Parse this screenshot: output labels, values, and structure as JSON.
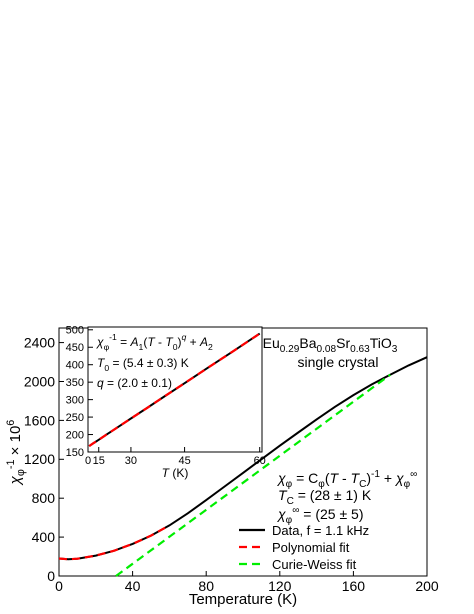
{
  "chart_data": [
    {
      "type": "line",
      "xlabel": "Temperature (K)",
      "ylabel": {
        "segments": [
          {
            "text": "χ",
            "italic": true
          },
          {
            "text": "φ",
            "sub": true
          },
          {
            "text": "-1",
            "sup": true
          },
          {
            "text": " × 10"
          },
          {
            "text": "6",
            "sup": true
          }
        ]
      },
      "xlim": [
        0,
        200
      ],
      "xticks": [
        0,
        40,
        80,
        120,
        160,
        200
      ],
      "ylim": [
        0,
        2550
      ],
      "yticks": [
        0,
        400,
        800,
        1200,
        1600,
        2000,
        2400
      ],
      "legend": "lower right",
      "series": [
        {
          "name": "Data, f = 1.1 kHz",
          "color": "#000000",
          "dash": "solid",
          "x": [
            0,
            5,
            10,
            20,
            30,
            40,
            50,
            60,
            70,
            80,
            90,
            100,
            110,
            120,
            130,
            140,
            150,
            160,
            170,
            180,
            190,
            200
          ],
          "values": [
            180,
            172,
            178,
            210,
            260,
            330,
            415,
            520,
            645,
            780,
            920,
            1060,
            1200,
            1340,
            1475,
            1610,
            1740,
            1860,
            1970,
            2070,
            2165,
            2250
          ]
        },
        {
          "name": "Polynomial fit",
          "color": "#ff0000",
          "dash": "dashed",
          "x": [
            0,
            5,
            10,
            20,
            30,
            40,
            50,
            60
          ],
          "values": [
            180,
            172,
            178,
            210,
            260,
            330,
            415,
            520
          ]
        },
        {
          "name": "Curie-Weiss fit",
          "color": "#00ee00",
          "dash": "dashed",
          "x": [
            31,
            180
          ],
          "values": [
            0,
            2070
          ]
        }
      ],
      "annotations": [
        {
          "segments": [
            {
              "text": "Eu"
            },
            {
              "text": "0.29",
              "sub": true
            },
            {
              "text": "Ba"
            },
            {
              "text": "0.08",
              "sub": true
            },
            {
              "text": "Sr"
            },
            {
              "text": "0.63",
              "sub": true
            },
            {
              "text": "TiO"
            },
            {
              "text": "3",
              "sub": true
            }
          ]
        },
        {
          "segments": [
            {
              "text": "single crystal"
            }
          ]
        },
        {
          "segments": [
            {
              "text": "χ",
              "italic": true
            },
            {
              "text": "φ",
              "sub": true
            },
            {
              "text": " = C"
            },
            {
              "text": "φ",
              "sub": true
            },
            {
              "text": "("
            },
            {
              "text": "T",
              "italic": true
            },
            {
              "text": " - "
            },
            {
              "text": "T",
              "italic": true
            },
            {
              "text": "C",
              "sub": true
            },
            {
              "text": ")"
            },
            {
              "text": "-1",
              "sup": true
            },
            {
              "text": " + "
            },
            {
              "text": "χ",
              "italic": true
            },
            {
              "text": "φ",
              "sub": true
            },
            {
              "text": "∞",
              "sup": true
            }
          ]
        },
        {
          "segments": [
            {
              "text": "T",
              "italic": true
            },
            {
              "text": "C",
              "sub": true
            },
            {
              "text": " = (28 ± 1) K"
            }
          ]
        },
        {
          "segments": [
            {
              "text": "χ",
              "italic": true
            },
            {
              "text": "φ",
              "sub": true
            },
            {
              "text": "∞",
              "sup": true
            },
            {
              "text": " = (25 ± 5)"
            }
          ]
        }
      ]
    },
    {
      "type": "line",
      "xlabel": {
        "segments": [
          {
            "text": "T",
            "italic": true
          },
          {
            "text": " (K)"
          }
        ]
      },
      "xscale": "square",
      "xlim": [
        0,
        60.4
      ],
      "xticks": [
        0,
        15,
        30,
        45,
        60
      ],
      "ylim": [
        150,
        508
      ],
      "yticks": [
        150,
        200,
        250,
        300,
        350,
        400,
        450,
        500
      ],
      "series": [
        {
          "color": "#000000",
          "dash": "solid",
          "x": [
            5,
            10,
            15,
            20,
            25,
            30,
            35,
            40,
            45,
            50,
            55,
            60
          ],
          "values": [
            167,
            174,
            185,
            201,
            221,
            246,
            275,
            309,
            347,
            390,
            437,
            489
          ]
        },
        {
          "color": "#ff0000",
          "dash": "dashed",
          "x": [
            5,
            10,
            15,
            20,
            25,
            30,
            35,
            40,
            45,
            50,
            55,
            60
          ],
          "values": [
            167,
            174,
            185,
            201,
            221,
            246,
            275,
            309,
            347,
            390,
            437,
            489
          ]
        }
      ],
      "annotations": [
        {
          "segments": [
            {
              "text": "χ",
              "italic": true
            },
            {
              "text": "φ",
              "sub": true
            },
            {
              "text": "-1",
              "sup": true
            },
            {
              "text": " = "
            },
            {
              "text": "A",
              "italic": true
            },
            {
              "text": "1",
              "sub": true
            },
            {
              "text": "("
            },
            {
              "text": "T",
              "italic": true
            },
            {
              "text": " - "
            },
            {
              "text": "T",
              "italic": true
            },
            {
              "text": "0",
              "sub": true
            },
            {
              "text": ")"
            },
            {
              "text": "q",
              "italic": true,
              "sup": true
            },
            {
              "text": " + "
            },
            {
              "text": "A",
              "italic": true
            },
            {
              "text": "2",
              "sub": true
            }
          ]
        },
        {
          "segments": [
            {
              "text": "T",
              "italic": true
            },
            {
              "text": "0",
              "sub": true
            },
            {
              "text": " = (5.4 ± 0.3) K"
            }
          ]
        },
        {
          "segments": [
            {
              "text": "q",
              "italic": true
            },
            {
              "text": " = (2.0 ± 0.1)"
            }
          ]
        }
      ]
    }
  ]
}
